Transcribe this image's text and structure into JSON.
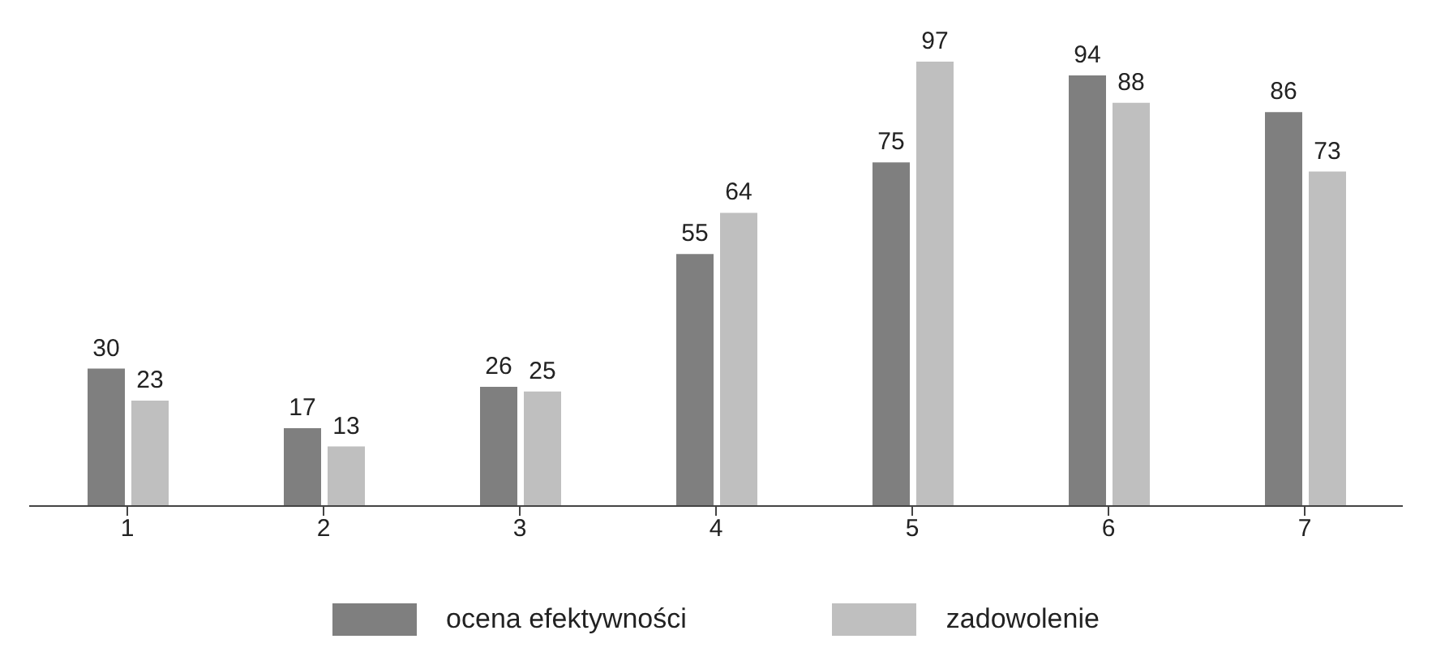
{
  "chart_data": {
    "type": "bar",
    "categories": [
      "1",
      "2",
      "3",
      "4",
      "5",
      "6",
      "7"
    ],
    "series": [
      {
        "name": "ocena efektywności",
        "color": "#7f7f7f",
        "values": [
          30,
          17,
          26,
          55,
          75,
          94,
          86
        ]
      },
      {
        "name": "zadowolenie",
        "color": "#bfbfbf",
        "values": [
          23,
          13,
          25,
          64,
          97,
          88,
          73
        ]
      }
    ],
    "data_labels": true,
    "legend": "bottom",
    "grid": false
  }
}
